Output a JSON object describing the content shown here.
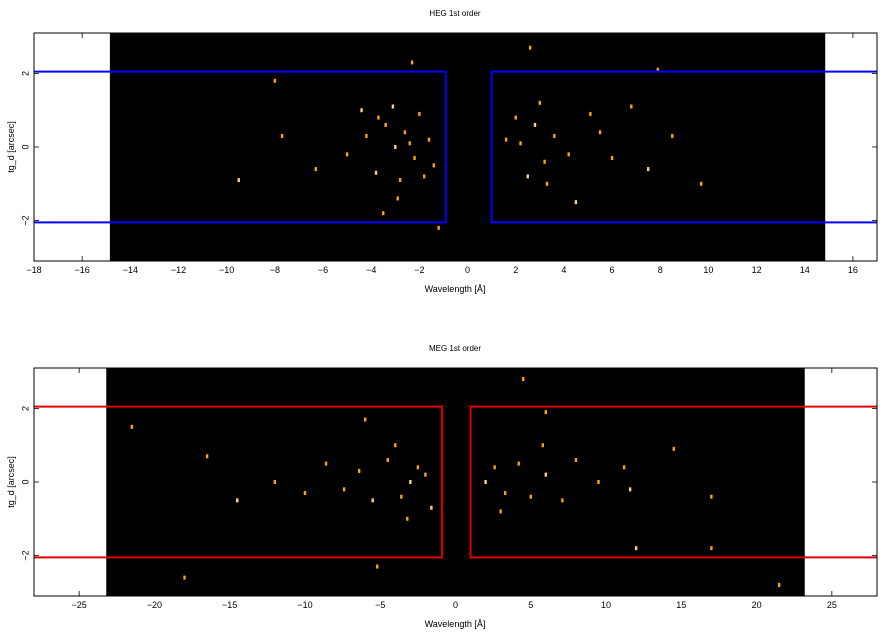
{
  "chart_data": [
    {
      "type": "scatter",
      "title": "HEG 1st order",
      "xlabel": "Wavelength [Å]",
      "ylabel": "tg_d [arcsec]",
      "xlim": [
        -18,
        17
      ],
      "ylim": [
        -3.1,
        3.1
      ],
      "x_ticks": [
        -18,
        -16,
        -14,
        -12,
        -10,
        -8,
        -6,
        -4,
        -2,
        0,
        2,
        4,
        6,
        8,
        10,
        12,
        14,
        16
      ],
      "y_ticks": [
        -2,
        0,
        2
      ],
      "grid": false,
      "legend": "none",
      "data_region": [
        -14.85,
        14.85
      ],
      "extraction_regions": [
        {
          "x": [
            -22,
            -0.9
          ],
          "y": [
            -2.05,
            2.05
          ]
        },
        {
          "x": [
            1.0,
            22
          ],
          "y": [
            -2.05,
            2.05
          ]
        }
      ],
      "colors": {
        "background": "#000000",
        "events": "#ffa500",
        "events_bright": "#ffd27a",
        "region": "#0000ff"
      },
      "events": [
        {
          "x": -3.0,
          "y": 0.0
        },
        {
          "x": -2.6,
          "y": 0.4
        },
        {
          "x": -2.2,
          "y": -0.3
        },
        {
          "x": -3.4,
          "y": 0.6
        },
        {
          "x": -2.0,
          "y": 0.9
        },
        {
          "x": -3.8,
          "y": -0.7
        },
        {
          "x": -1.6,
          "y": 0.2
        },
        {
          "x": -2.8,
          "y": -0.9
        },
        {
          "x": -4.2,
          "y": 0.3
        },
        {
          "x": -1.4,
          "y": -0.5
        },
        {
          "x": -3.1,
          "y": 1.1
        },
        {
          "x": -2.4,
          "y": 0.1
        },
        {
          "x": -5.0,
          "y": -0.2
        },
        {
          "x": -6.3,
          "y": -0.6
        },
        {
          "x": -7.7,
          "y": 0.3
        },
        {
          "x": -9.5,
          "y": -0.9
        },
        {
          "x": -8.0,
          "y": 1.8
        },
        {
          "x": -2.3,
          "y": 2.3
        },
        {
          "x": -3.5,
          "y": -1.8
        },
        {
          "x": -1.2,
          "y": -2.2
        },
        {
          "x": -4.4,
          "y": 1.0
        },
        {
          "x": -2.9,
          "y": -1.4
        },
        {
          "x": -3.7,
          "y": 0.8
        },
        {
          "x": -1.8,
          "y": -0.8
        },
        {
          "x": 2.2,
          "y": 0.1
        },
        {
          "x": 2.8,
          "y": 0.6
        },
        {
          "x": 3.2,
          "y": -0.4
        },
        {
          "x": 2.0,
          "y": 0.8
        },
        {
          "x": 3.6,
          "y": 0.3
        },
        {
          "x": 4.2,
          "y": -0.2
        },
        {
          "x": 2.5,
          "y": -0.8
        },
        {
          "x": 3.0,
          "y": 1.2
        },
        {
          "x": 5.5,
          "y": 0.4
        },
        {
          "x": 6.0,
          "y": -0.3
        },
        {
          "x": 6.8,
          "y": 1.1
        },
        {
          "x": 7.5,
          "y": -0.6
        },
        {
          "x": 8.5,
          "y": 0.3
        },
        {
          "x": 9.7,
          "y": -1.0
        },
        {
          "x": 1.6,
          "y": 0.2
        },
        {
          "x": 2.6,
          "y": 2.7
        },
        {
          "x": 4.5,
          "y": -1.5
        },
        {
          "x": 3.3,
          "y": -1.0
        },
        {
          "x": 5.1,
          "y": 0.9
        },
        {
          "x": 7.9,
          "y": 2.1
        }
      ]
    },
    {
      "type": "scatter",
      "title": "MEG 1st order",
      "xlabel": "Wavelength [Å]",
      "ylabel": "tg_d [arcsec]",
      "xlim": [
        -28,
        28
      ],
      "ylim": [
        -3.1,
        3.1
      ],
      "x_ticks": [
        -25,
        -20,
        -15,
        -10,
        -5,
        0,
        5,
        10,
        15,
        20,
        25
      ],
      "y_ticks": [
        -2,
        0,
        2
      ],
      "grid": false,
      "legend": "none",
      "data_region": [
        -23.2,
        23.2
      ],
      "extraction_regions": [
        {
          "x": [
            -35,
            -0.9
          ],
          "y": [
            -2.05,
            2.05
          ]
        },
        {
          "x": [
            1.0,
            35
          ],
          "y": [
            -2.05,
            2.05
          ]
        }
      ],
      "colors": {
        "background": "#000000",
        "events": "#ffa500",
        "events_bright": "#ffd27a",
        "region": "#e00000"
      },
      "events": [
        {
          "x": -3.0,
          "y": 0.0
        },
        {
          "x": -2.5,
          "y": 0.4
        },
        {
          "x": -3.6,
          "y": -0.4
        },
        {
          "x": -2.0,
          "y": 0.2
        },
        {
          "x": -4.5,
          "y": 0.6
        },
        {
          "x": -5.5,
          "y": -0.5
        },
        {
          "x": -6.4,
          "y": 0.3
        },
        {
          "x": -7.4,
          "y": -0.2
        },
        {
          "x": -8.6,
          "y": 0.5
        },
        {
          "x": -10.0,
          "y": -0.3
        },
        {
          "x": -1.6,
          "y": -0.7
        },
        {
          "x": -4.0,
          "y": 1.0
        },
        {
          "x": -3.2,
          "y": -1.0
        },
        {
          "x": -21.5,
          "y": 1.5
        },
        {
          "x": -16.5,
          "y": 0.7
        },
        {
          "x": -14.5,
          "y": -0.5
        },
        {
          "x": -12.0,
          "y": 0.0
        },
        {
          "x": -18.0,
          "y": -2.6
        },
        {
          "x": -5.2,
          "y": -2.3
        },
        {
          "x": -6.0,
          "y": 1.7
        },
        {
          "x": 2.0,
          "y": 0.0
        },
        {
          "x": 2.6,
          "y": 0.4
        },
        {
          "x": 3.3,
          "y": -0.3
        },
        {
          "x": 4.2,
          "y": 0.5
        },
        {
          "x": 5.0,
          "y": -0.4
        },
        {
          "x": 6.0,
          "y": 0.2
        },
        {
          "x": 7.1,
          "y": -0.5
        },
        {
          "x": 8.0,
          "y": 0.6
        },
        {
          "x": 9.5,
          "y": 0.0
        },
        {
          "x": 11.2,
          "y": 0.4
        },
        {
          "x": 11.6,
          "y": -0.2
        },
        {
          "x": 14.5,
          "y": 0.9
        },
        {
          "x": 17.0,
          "y": -0.4
        },
        {
          "x": 4.5,
          "y": 2.8
        },
        {
          "x": 6.0,
          "y": 1.9
        },
        {
          "x": 12.0,
          "y": -1.8
        },
        {
          "x": 17.0,
          "y": -1.8
        },
        {
          "x": 21.5,
          "y": -2.8
        },
        {
          "x": 5.8,
          "y": 1.0
        },
        {
          "x": 3.0,
          "y": -0.8
        }
      ]
    }
  ]
}
